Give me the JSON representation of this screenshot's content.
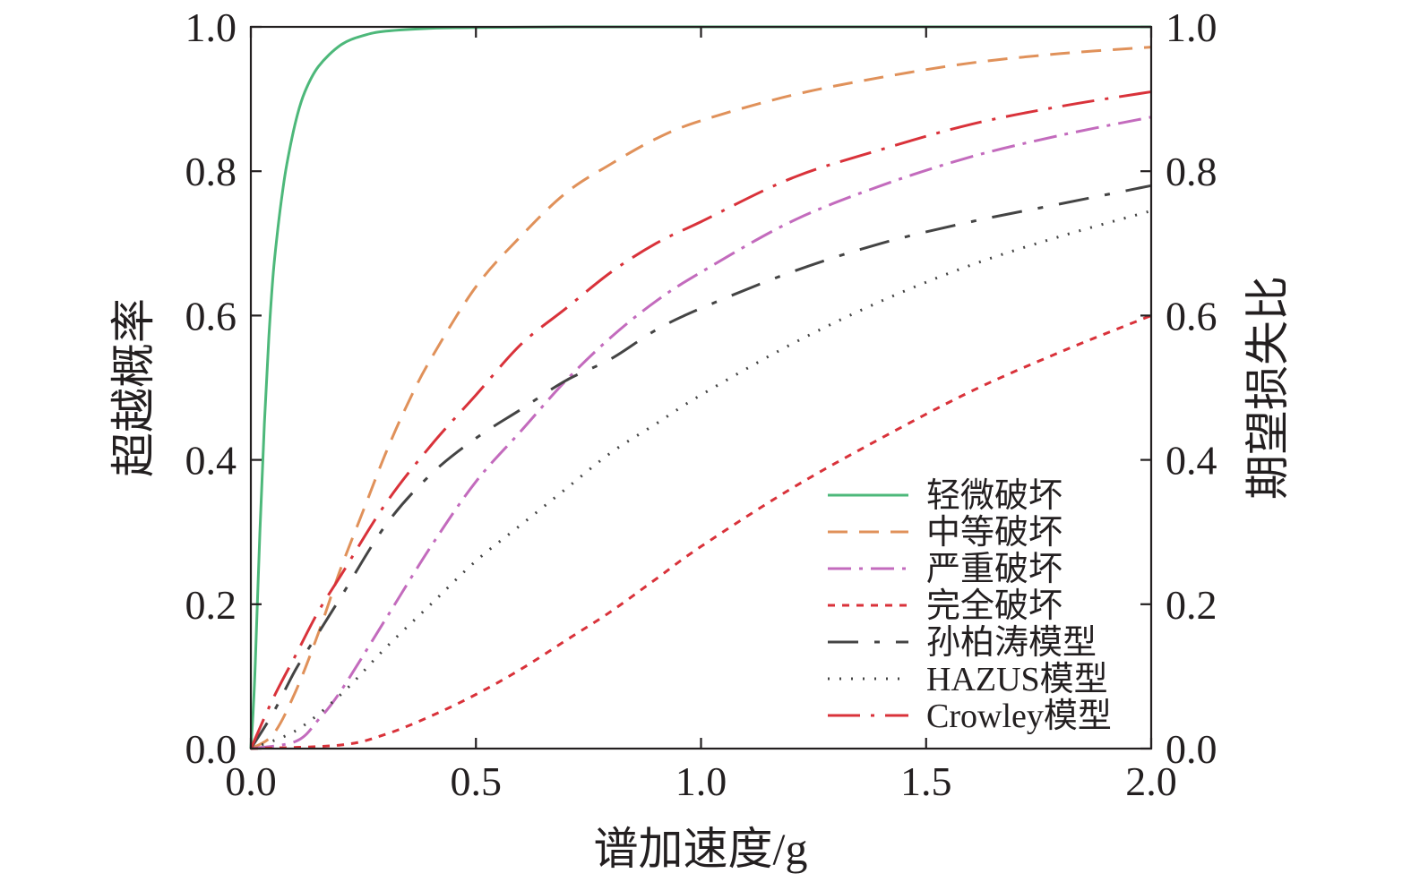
{
  "chart_data": {
    "type": "line",
    "xlabel": "谱加速度/g",
    "ylabel_left": "超越概率",
    "ylabel_right": "期望损失比",
    "xlim": [
      0,
      2.0
    ],
    "ylim": [
      0,
      1.0
    ],
    "xticks": [
      "0.0",
      "0.5",
      "1.0",
      "1.5",
      "2.0"
    ],
    "yticks_left": [
      "0.0",
      "0.2",
      "0.4",
      "0.6",
      "0.8",
      "1.0"
    ],
    "yticks_right": [
      "0.0",
      "0.2",
      "0.4",
      "0.6",
      "0.8",
      "1.0"
    ],
    "legend_position": "lower-right",
    "grid": false,
    "series": [
      {
        "name": "轻微破坏",
        "color": "#4db87a",
        "dash": "solid",
        "axis": "left",
        "x": [
          0,
          0.005,
          0.01,
          0.02,
          0.03,
          0.04,
          0.05,
          0.06,
          0.07,
          0.08,
          0.1,
          0.12,
          0.15,
          0.2,
          0.25,
          0.3,
          0.4,
          0.5,
          0.7,
          1.0,
          1.5,
          2.0
        ],
        "y": [
          0,
          0.05,
          0.12,
          0.3,
          0.45,
          0.57,
          0.66,
          0.72,
          0.77,
          0.81,
          0.87,
          0.91,
          0.945,
          0.975,
          0.988,
          0.994,
          0.998,
          0.999,
          1.0,
          1.0,
          1.0,
          1.0
        ]
      },
      {
        "name": "中等破坏",
        "color": "#e0915a",
        "dash": "22,13",
        "axis": "left",
        "x": [
          0,
          0.05,
          0.1,
          0.15,
          0.2,
          0.25,
          0.3,
          0.35,
          0.4,
          0.5,
          0.6,
          0.7,
          0.8,
          0.9,
          1.0,
          1.2,
          1.4,
          1.6,
          1.8,
          2.0
        ],
        "y": [
          0,
          0.02,
          0.08,
          0.16,
          0.25,
          0.33,
          0.41,
          0.48,
          0.54,
          0.64,
          0.71,
          0.77,
          0.81,
          0.845,
          0.87,
          0.905,
          0.93,
          0.95,
          0.963,
          0.972
        ]
      },
      {
        "name": "严重破坏",
        "color": "#c36bbd",
        "dash": "26,9,4,9",
        "axis": "left",
        "x": [
          0,
          0.1,
          0.15,
          0.2,
          0.3,
          0.4,
          0.5,
          0.6,
          0.7,
          0.8,
          0.9,
          1.0,
          1.2,
          1.4,
          1.6,
          1.8,
          2.0
        ],
        "y": [
          0,
          0.01,
          0.04,
          0.08,
          0.18,
          0.28,
          0.37,
          0.44,
          0.51,
          0.57,
          0.62,
          0.66,
          0.73,
          0.78,
          0.82,
          0.85,
          0.875
        ]
      },
      {
        "name": "完全破坏",
        "color": "#d9323a",
        "dash": "8,8",
        "axis": "left",
        "x": [
          0,
          0.2,
          0.3,
          0.4,
          0.5,
          0.6,
          0.7,
          0.8,
          0.9,
          1.0,
          1.2,
          1.4,
          1.6,
          1.8,
          2.0
        ],
        "y": [
          0,
          0.005,
          0.02,
          0.045,
          0.075,
          0.11,
          0.15,
          0.19,
          0.235,
          0.28,
          0.36,
          0.43,
          0.495,
          0.55,
          0.6
        ]
      },
      {
        "name": "孙柏涛模型",
        "color": "#444444",
        "dash": "34,18,6,18",
        "axis": "right",
        "x": [
          0,
          0.05,
          0.1,
          0.15,
          0.2,
          0.3,
          0.4,
          0.5,
          0.6,
          0.7,
          0.8,
          0.9,
          1.0,
          1.2,
          1.4,
          1.6,
          1.8,
          2.0
        ],
        "y": [
          0,
          0.05,
          0.11,
          0.16,
          0.21,
          0.31,
          0.38,
          0.43,
          0.47,
          0.51,
          0.54,
          0.58,
          0.61,
          0.66,
          0.7,
          0.73,
          0.755,
          0.78
        ]
      },
      {
        "name": "HAZUS模型",
        "color": "#444444",
        "dash": "2,11",
        "axis": "right",
        "x": [
          0,
          0.1,
          0.2,
          0.3,
          0.4,
          0.5,
          0.6,
          0.7,
          0.8,
          0.9,
          1.0,
          1.2,
          1.4,
          1.6,
          1.8,
          2.0
        ],
        "y": [
          0,
          0.025,
          0.075,
          0.14,
          0.2,
          0.26,
          0.31,
          0.36,
          0.41,
          0.45,
          0.49,
          0.56,
          0.62,
          0.67,
          0.71,
          0.745
        ]
      },
      {
        "name": "Crowley模型",
        "color": "#d9323a",
        "dash": "36,12,4,12",
        "axis": "right",
        "x": [
          0,
          0.05,
          0.1,
          0.15,
          0.2,
          0.3,
          0.4,
          0.5,
          0.6,
          0.7,
          0.8,
          0.9,
          1.0,
          1.2,
          1.4,
          1.6,
          1.8,
          2.0
        ],
        "y": [
          0,
          0.07,
          0.13,
          0.19,
          0.24,
          0.34,
          0.42,
          0.49,
          0.56,
          0.61,
          0.66,
          0.7,
          0.73,
          0.79,
          0.83,
          0.865,
          0.89,
          0.91
        ]
      }
    ]
  }
}
